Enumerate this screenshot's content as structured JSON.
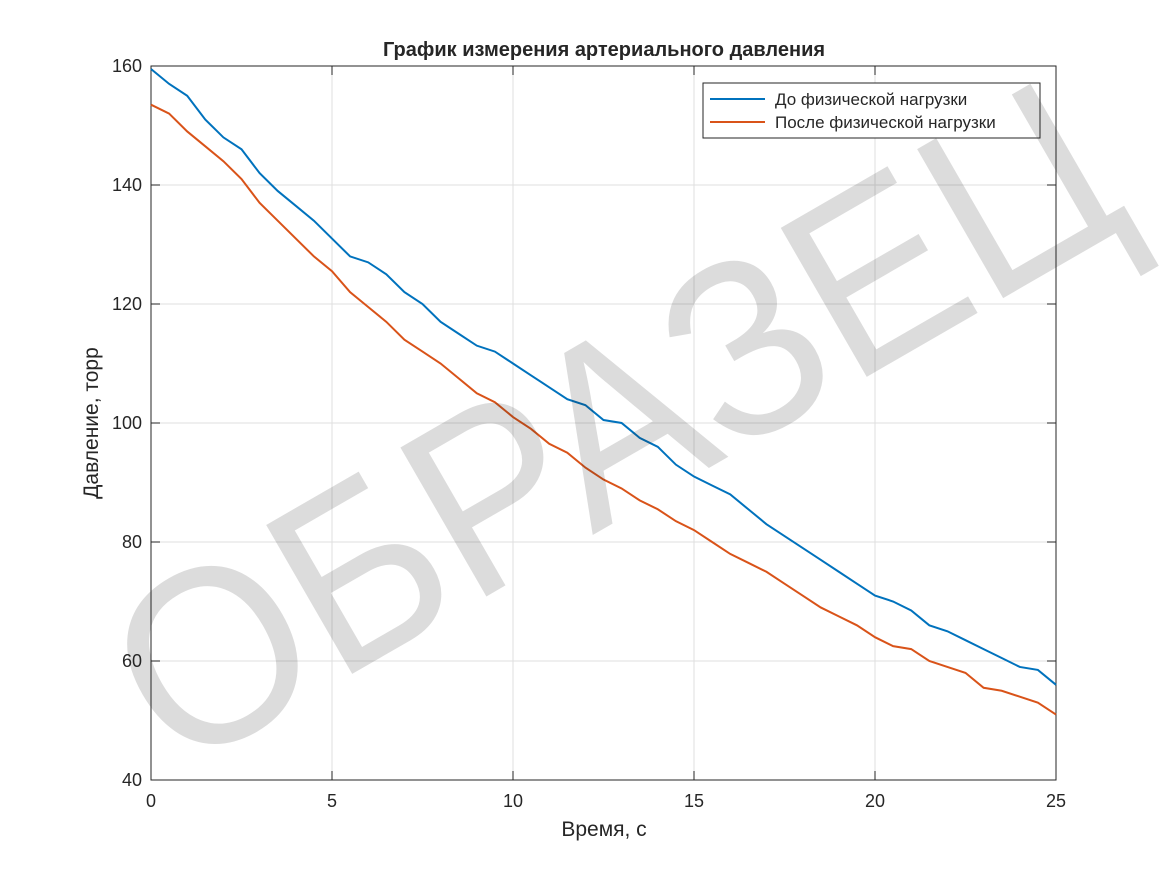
{
  "chart_data": {
    "type": "line",
    "title": "График измерения артериального давления",
    "xlabel": "Время, с",
    "ylabel": "Давление, торр",
    "watermark": "ОБРАЗЕЦ",
    "x": [
      0,
      0.5,
      1,
      1.5,
      2,
      2.5,
      3,
      3.5,
      4,
      4.5,
      5,
      5.5,
      6,
      6.5,
      7,
      7.5,
      8,
      8.5,
      9,
      9.5,
      10,
      10.5,
      11,
      11.5,
      12,
      12.5,
      13,
      13.5,
      14,
      14.5,
      15,
      15.5,
      16,
      16.5,
      17,
      17.5,
      18,
      18.5,
      19,
      19.5,
      20,
      20.5,
      21,
      21.5,
      22,
      22.5,
      23,
      23.5,
      24,
      24.5,
      25
    ],
    "series": [
      {
        "name": "До физической нагрузки",
        "color": "#0072bd",
        "values": [
          159.5,
          157,
          155,
          151,
          148,
          146,
          142,
          139,
          136.5,
          134,
          131,
          128,
          127,
          125,
          122,
          120,
          117,
          115,
          113,
          112,
          110,
          108,
          106,
          104,
          103,
          100.5,
          100,
          97.5,
          96,
          93,
          91,
          89.5,
          88,
          85.5,
          83,
          81,
          79,
          77,
          75,
          73,
          71,
          70,
          68.5,
          66,
          65,
          63.5,
          62,
          60.5,
          59,
          58.5,
          56
        ]
      },
      {
        "name": "После физической нагрузки",
        "color": "#d95319",
        "values": [
          153.5,
          152,
          149,
          146.5,
          144,
          141,
          137,
          134,
          131,
          128,
          125.5,
          122,
          119.5,
          117,
          114,
          112,
          110,
          107.5,
          105,
          103.5,
          101,
          99,
          96.5,
          95,
          92.5,
          90.5,
          89,
          87,
          85.5,
          83.5,
          82,
          80,
          78,
          76.5,
          75,
          73,
          71,
          69,
          67.5,
          66,
          64,
          62.5,
          62,
          60,
          59,
          58,
          55.5,
          55,
          54,
          53,
          51
        ]
      }
    ],
    "xlim": [
      0,
      25
    ],
    "xticks": [
      0,
      5,
      10,
      15,
      20,
      25
    ],
    "ylim": [
      40,
      160
    ],
    "yticks": [
      40,
      60,
      80,
      100,
      120,
      140,
      160
    ],
    "grid": true,
    "legend": "northeast"
  }
}
